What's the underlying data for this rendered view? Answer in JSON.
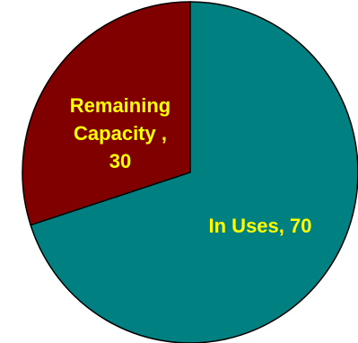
{
  "chart_data": {
    "type": "pie",
    "title": "",
    "slices": [
      {
        "label": "Remaining Capacity",
        "value": 30,
        "label_lines": [
          "Remaining",
          "Capacity ,",
          "30"
        ],
        "color": "#800000"
      },
      {
        "label": "In Uses",
        "value": 70,
        "label_lines": [
          "In Uses, 70"
        ],
        "color": "#008080"
      }
    ],
    "label_color": "#ffff00",
    "outline_color": "#000000",
    "legend": "none"
  }
}
